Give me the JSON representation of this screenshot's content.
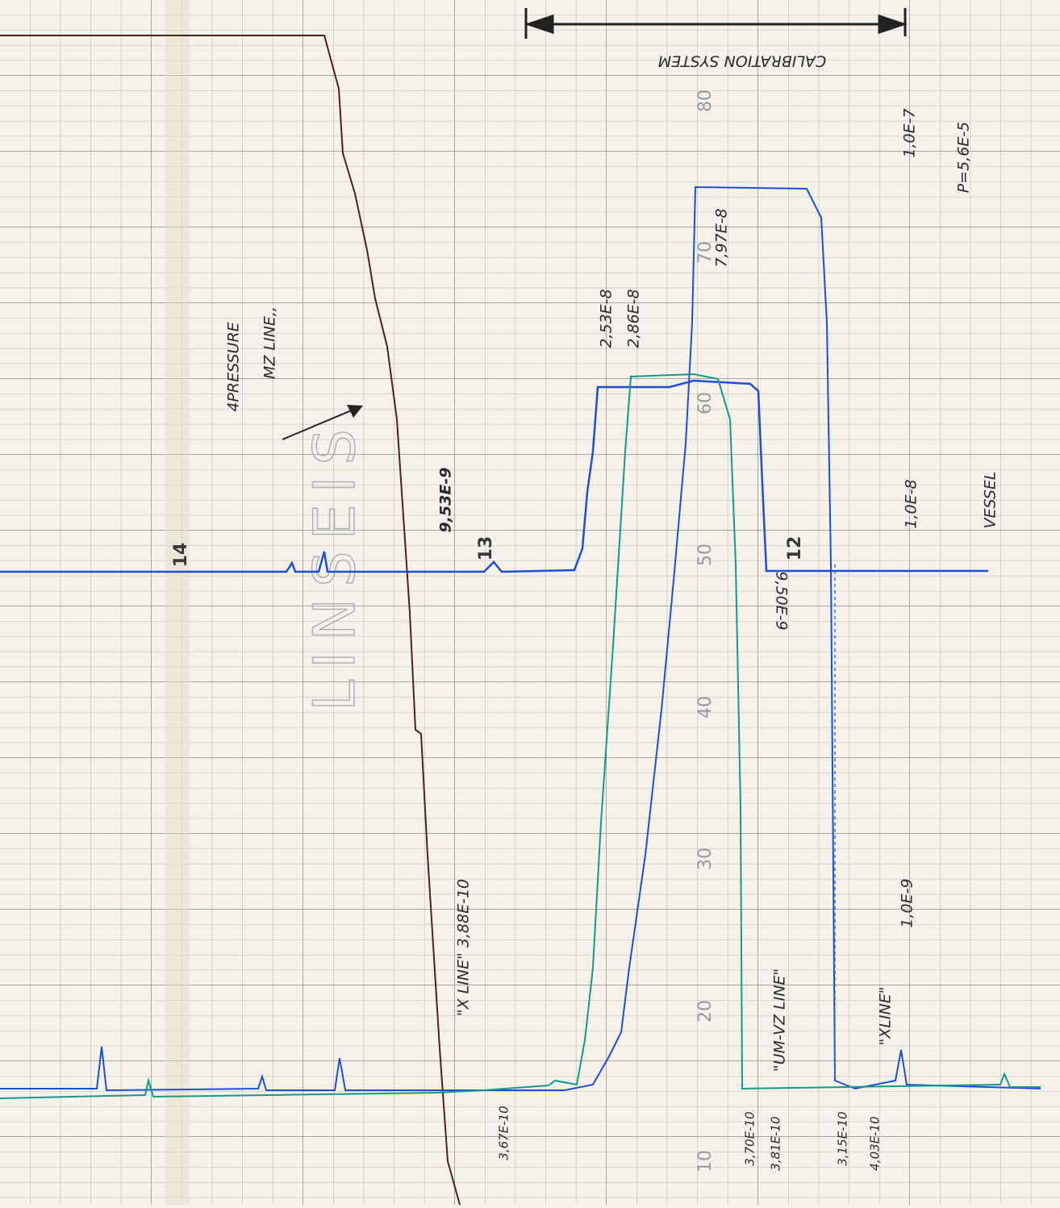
{
  "scale_labels": [
    "80",
    "70",
    "60",
    "50",
    "40",
    "30",
    "20",
    "10"
  ],
  "chart_marks": [
    "14",
    "13",
    "12"
  ],
  "watermark": "LINSEIS",
  "annotations": {
    "calibration": "CALIBRATION SYSTEM",
    "upper_limit": "1,0E-7",
    "pressure": "P=5,6E-5",
    "peak_high": "7,97E-8",
    "peak_a": "2,53E-8",
    "peak_b": "2,86E-8",
    "pressure_label": "4PRESSURE",
    "line_label": "MZ LINE,,",
    "baseline_a": "9,53E-9",
    "mid_limit": "1,0E-8",
    "vessel": "VESSEL",
    "baseline_b": "9,50E-9",
    "xline_a": "\"X LINE\" 3,88E-10",
    "xline_a_base": "3,67E-10",
    "low_limit": "1,0E-9",
    "umvz": "\"UM-VZ LINE\"",
    "umvz_a": "3,70E-10",
    "umvz_b": "3,81E-10",
    "xline_b_a": "3,15E-10",
    "xline_b_b": "4,03E-10",
    "xline_b": "\"XLINE\""
  }
}
